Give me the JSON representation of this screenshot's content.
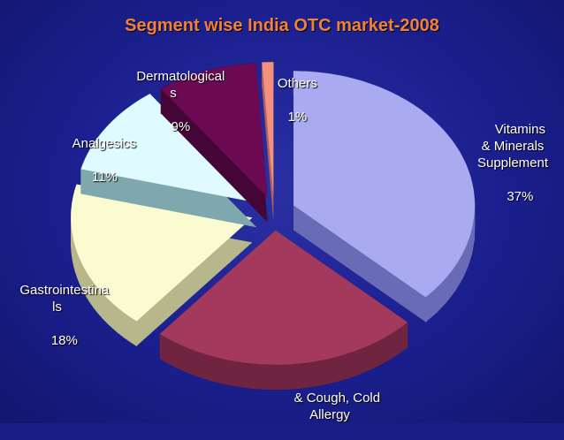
{
  "chart_data": {
    "type": "pie",
    "title": "Segment wise India OTC market-2008",
    "slices": [
      {
        "label": "Vitamins\n& Minerals\nSupplement",
        "value": 37,
        "value_label": "37%",
        "color": "#a9aaf0",
        "side": "#6a6bb6"
      },
      {
        "label": "& Cough, Cold\nAllergy",
        "value": 24,
        "value_label": "",
        "color": "#a33a5d",
        "side": "#6f2540"
      },
      {
        "label": "Gastrointestina\nls",
        "value": 18,
        "value_label": "18%",
        "color": "#fbfbd2",
        "side": "#b7b78c"
      },
      {
        "label": "Analgesics",
        "value": 11,
        "value_label": "11%",
        "color": "#dffbff",
        "side": "#7ea8ad"
      },
      {
        "label": "Dermatological\ns",
        "value": 9,
        "value_label": "9%",
        "color": "#6b0a52",
        "side": "#440636"
      },
      {
        "label": "Others",
        "value": 1,
        "value_label": "1%",
        "color": "#f4907e",
        "side": "#b0625a"
      }
    ]
  }
}
